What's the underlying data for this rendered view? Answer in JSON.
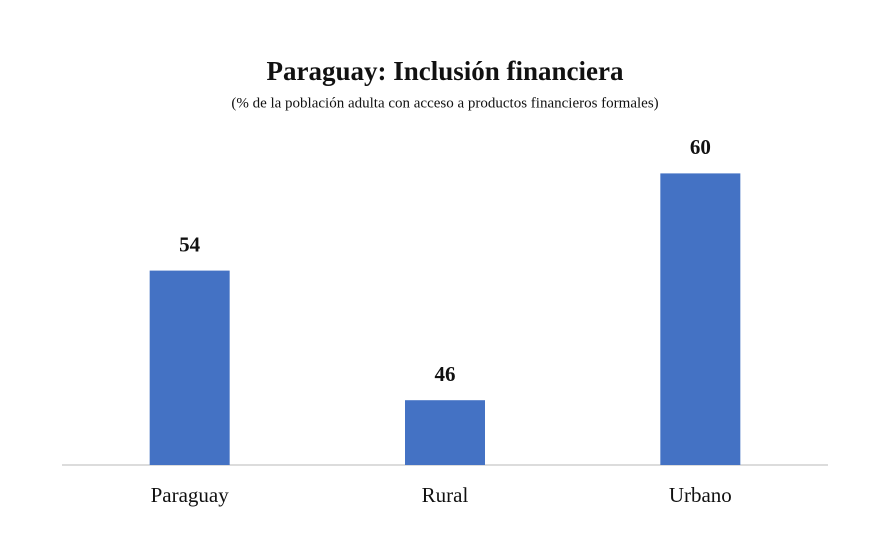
{
  "chart_data": {
    "type": "bar",
    "title": "Paraguay: Inclusión financiera",
    "subtitle": "(% de la población adulta con acceso a productos financieros formales)",
    "categories": [
      "Paraguay",
      "Rural",
      "Urbano"
    ],
    "values": [
      54,
      46,
      60
    ],
    "color": "#4472c4",
    "ylim": [
      42,
      62
    ],
    "grid": false
  }
}
